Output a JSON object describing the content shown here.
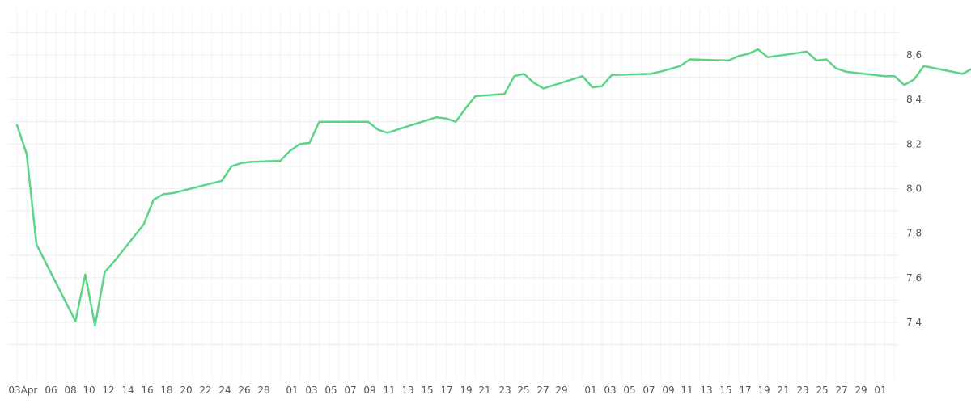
{
  "chart_data": {
    "type": "line",
    "title": "",
    "xlabel": "",
    "ylabel": "",
    "ylim": [
      7.2,
      8.75
    ],
    "y_ticks": [
      "7,4",
      "7,6",
      "7,8",
      "8,0",
      "8,2",
      "8,4",
      "8,6"
    ],
    "y_tick_values": [
      7.4,
      7.6,
      7.8,
      8.0,
      8.2,
      8.4,
      8.6
    ],
    "grid": true,
    "x_tick_labels": [
      "03",
      "Apr",
      "06",
      "08",
      "10",
      "12",
      "14",
      "16",
      "18",
      "20",
      "22",
      "24",
      "26",
      "28",
      "01",
      "03",
      "05",
      "07",
      "09",
      "11",
      "13",
      "15",
      "17",
      "19",
      "21",
      "23",
      "25",
      "27",
      "29",
      "01",
      "03",
      "05",
      "07",
      "09",
      "11",
      "13",
      "15",
      "17",
      "19",
      "21",
      "23",
      "25",
      "27",
      "29",
      "01"
    ],
    "series": [
      {
        "color": "#5bd585",
        "points": [
          [
            1,
            8.285
          ],
          [
            2,
            8.155
          ],
          [
            3,
            7.75
          ],
          [
            7,
            7.405
          ],
          [
            8,
            7.615
          ],
          [
            9,
            7.385
          ],
          [
            10,
            7.625
          ],
          [
            11,
            7.675
          ],
          [
            14,
            7.84
          ],
          [
            15,
            7.95
          ],
          [
            16,
            7.975
          ],
          [
            17,
            7.98
          ],
          [
            22,
            8.035
          ],
          [
            23,
            8.1
          ],
          [
            24,
            8.115
          ],
          [
            25,
            8.12
          ],
          [
            28,
            8.125
          ],
          [
            29,
            8.17
          ],
          [
            30,
            8.2
          ],
          [
            31,
            8.205
          ],
          [
            32,
            8.3
          ],
          [
            37,
            8.3
          ],
          [
            38,
            8.265
          ],
          [
            39,
            8.25
          ],
          [
            40,
            8.265
          ],
          [
            44,
            8.32
          ],
          [
            45,
            8.315
          ],
          [
            46,
            8.3
          ],
          [
            47,
            8.36
          ],
          [
            48,
            8.415
          ],
          [
            51,
            8.425
          ],
          [
            52,
            8.505
          ],
          [
            53,
            8.515
          ],
          [
            54,
            8.475
          ],
          [
            55,
            8.45
          ],
          [
            59,
            8.505
          ],
          [
            60,
            8.455
          ],
          [
            61,
            8.46
          ],
          [
            62,
            8.51
          ],
          [
            66,
            8.515
          ],
          [
            67,
            8.525
          ],
          [
            69,
            8.55
          ],
          [
            70,
            8.58
          ],
          [
            74,
            8.575
          ],
          [
            75,
            8.595
          ],
          [
            76,
            8.605
          ],
          [
            77,
            8.625
          ],
          [
            78,
            8.59
          ],
          [
            82,
            8.615
          ],
          [
            83,
            8.575
          ],
          [
            84,
            8.58
          ],
          [
            85,
            8.54
          ],
          [
            86,
            8.525
          ],
          [
            90,
            8.505
          ],
          [
            91,
            8.505
          ],
          [
            92,
            8.465
          ],
          [
            93,
            8.49
          ],
          [
            94,
            8.55
          ],
          [
            98,
            8.515
          ],
          [
            99,
            8.54
          ]
        ]
      }
    ]
  }
}
